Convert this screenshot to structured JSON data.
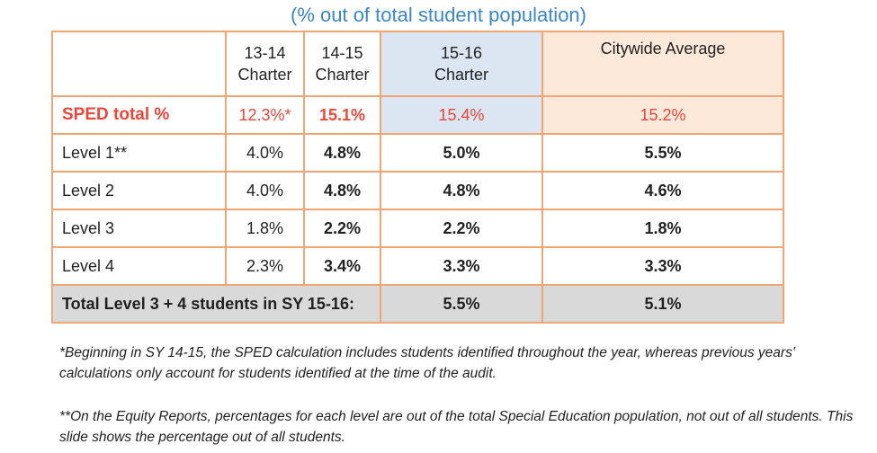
{
  "subtitle": "(% out of total student population)",
  "table": {
    "headers": [
      "",
      "13-14\nCharter",
      "14-15\nCharter",
      "15-16\nCharter",
      "Citywide Average"
    ],
    "header_lines": {
      "c2": [
        "13-14",
        "Charter"
      ],
      "c3": [
        "14-15",
        "Charter"
      ],
      "c4": [
        "15-16",
        "Charter"
      ],
      "c5": [
        "Citywide Average"
      ]
    },
    "rows": [
      {
        "label": "SPED total %",
        "v1314": "12.3%*",
        "v1415": "15.1%",
        "v1516": "15.4%",
        "citywide": "15.2%"
      },
      {
        "label": "Level 1**",
        "v1314": "4.0%",
        "v1415": "4.8%",
        "v1516": "5.0%",
        "citywide": "5.5%"
      },
      {
        "label": "Level 2",
        "v1314": "4.0%",
        "v1415": "4.8%",
        "v1516": "4.8%",
        "citywide": "4.6%"
      },
      {
        "label": "Level 3",
        "v1314": "1.8%",
        "v1415": "2.2%",
        "v1516": "2.2%",
        "citywide": "1.8%"
      },
      {
        "label": "Level 4",
        "v1314": "2.3%",
        "v1415": "3.4%",
        "v1516": "3.3%",
        "citywide": "3.3%"
      }
    ],
    "total_row": {
      "label": "Total Level 3 + 4  students in SY 15-16:",
      "v1516": "5.5%",
      "citywide": "5.1%"
    }
  },
  "footnotes": {
    "note1": "*Beginning in SY 14-15, the SPED calculation includes students identified throughout the year, whereas previous years' calculations only account for students identified at the time of the audit.",
    "note2": "**On the Equity Reports, percentages for each level are out of the total Special Education population, not out of all students.  This slide shows the percentage out of all students."
  },
  "colors": {
    "subtitle": "#3a86c8",
    "border": "#f2a673",
    "highlight_red": "#e8473a",
    "col_1516_bg": "#dce6f2",
    "citywide_bg": "#fde9d9",
    "total_bg": "#d9d9d9"
  }
}
